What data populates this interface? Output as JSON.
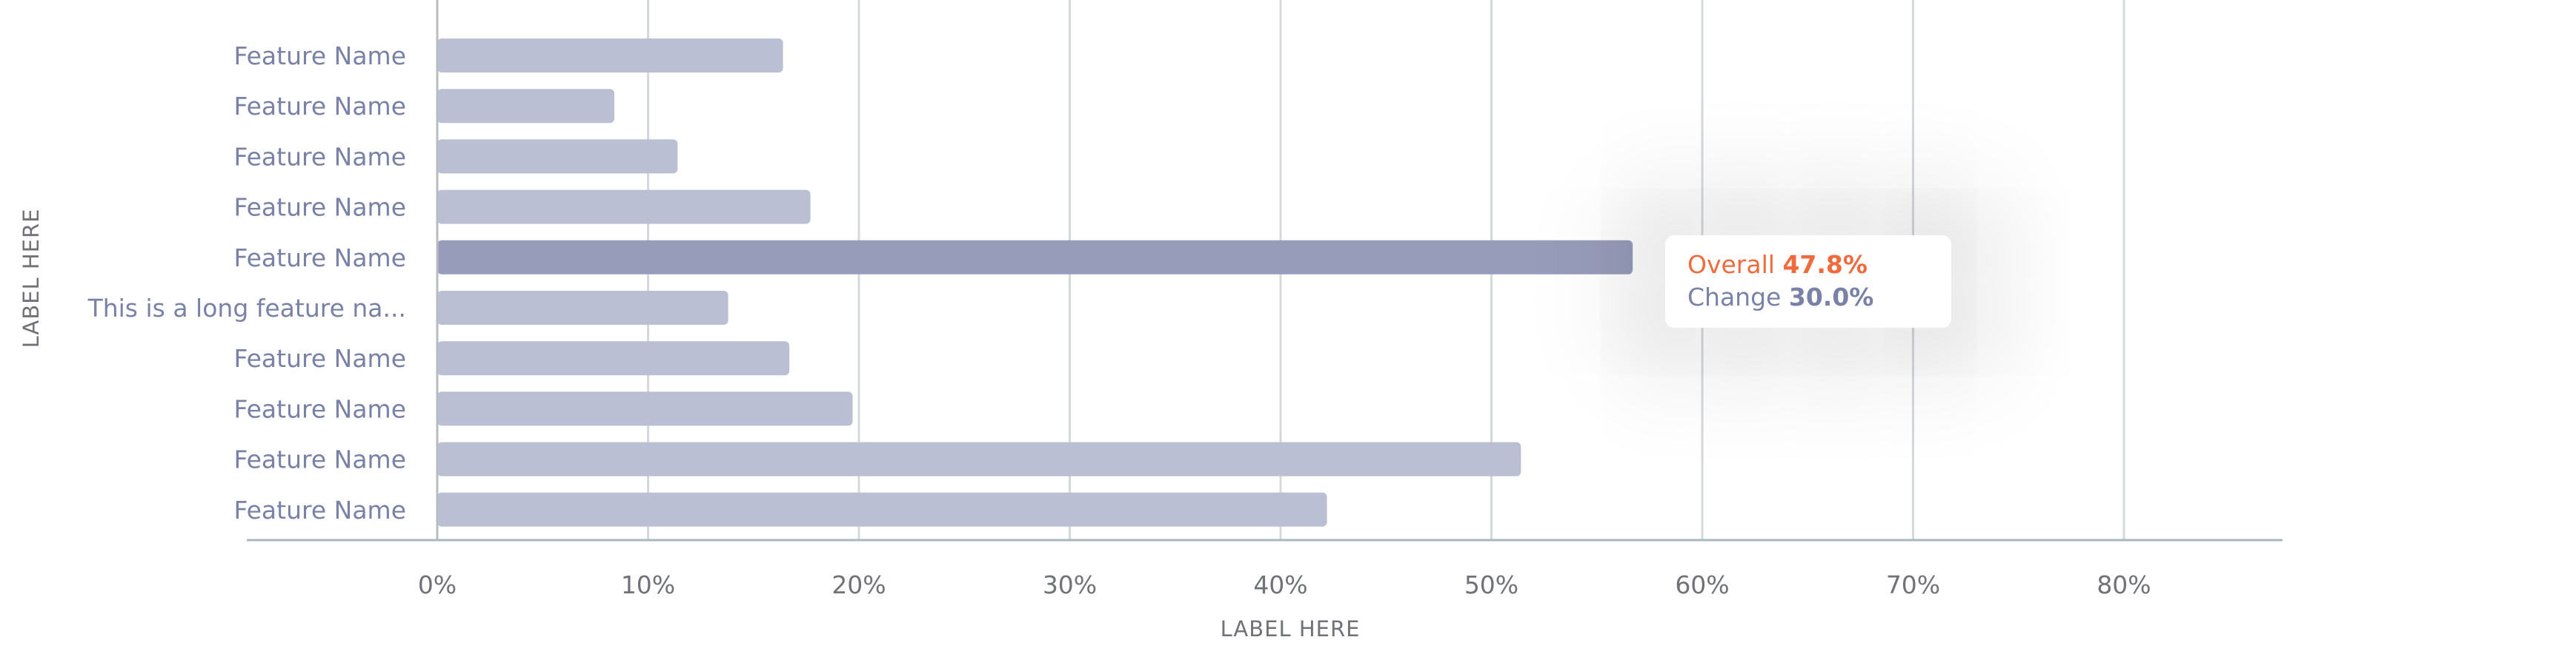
{
  "chart_data": {
    "type": "bar",
    "orientation": "horizontal",
    "categories": [
      "Feature Name",
      "Feature Name",
      "Feature Name",
      "Feature Name",
      "Feature Name",
      "This is a long feature na...",
      "Feature Name",
      "Feature Name",
      "Feature Name",
      "Feature Name"
    ],
    "values": [
      16.4,
      8.4,
      11.4,
      17.7,
      56.7,
      13.8,
      16.7,
      19.7,
      51.4,
      42.2
    ],
    "highlighted_index": 4,
    "xlabel": "LABEL HERE",
    "ylabel": "LABEL HERE",
    "xlim": [
      0,
      80
    ],
    "xticks": [
      "0%",
      "10%",
      "20%",
      "30%",
      "40%",
      "50%",
      "60%",
      "70%",
      "80%"
    ],
    "grid": "vertical",
    "colors": {
      "bar": "#bbbfd3",
      "bar_highlight": "#979cba",
      "label": "#7a81a6",
      "grid": "#d5d8dc",
      "axis": "#a9b8bd",
      "accent": "#ef6b3c"
    }
  },
  "tooltip": {
    "overall_label": "Overall",
    "overall_value": "47.8%",
    "change_label": "Change",
    "change_value": "30.0%"
  }
}
